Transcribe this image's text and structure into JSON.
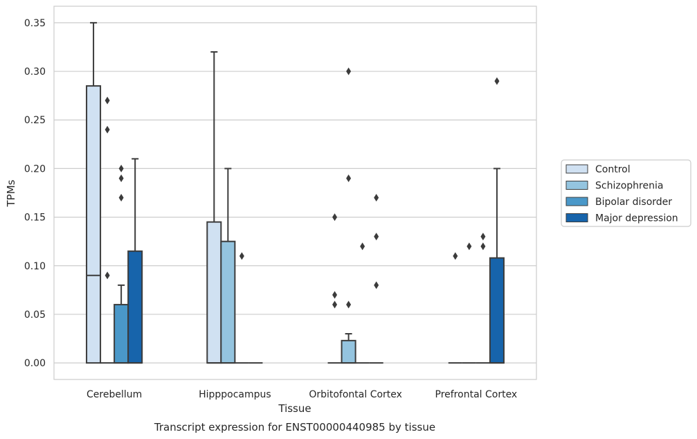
{
  "caption": "Transcript expression for ENST00000440985 by tissue",
  "chart_data": {
    "type": "box",
    "title": "",
    "xlabel": "Tissue",
    "ylabel": "TPMs",
    "ylim": [
      -0.017,
      0.367
    ],
    "yticks": [
      0.0,
      0.05,
      0.1,
      0.15,
      0.2,
      0.25,
      0.3,
      0.35
    ],
    "ytick_labels": [
      "0.00",
      "0.05",
      "0.10",
      "0.15",
      "0.20",
      "0.25",
      "0.30",
      "0.35"
    ],
    "grid": "horizontal",
    "legend_position": "outside-right",
    "categories": [
      "Cerebellum",
      "Hipppocampus",
      "Orbitofontal Cortex",
      "Prefrontal Cortex"
    ],
    "series": [
      {
        "name": "Control",
        "color": "#d0e1f2",
        "boxes": [
          {
            "q1": 0.0,
            "median": 0.09,
            "q3": 0.285,
            "whisker_low": 0.0,
            "whisker_high": 0.35,
            "outliers": []
          },
          {
            "q1": 0.0,
            "median": 0.0,
            "q3": 0.145,
            "whisker_low": 0.0,
            "whisker_high": 0.32,
            "outliers": []
          },
          {
            "q1": 0.0,
            "median": 0.0,
            "q3": 0.0,
            "whisker_low": 0.0,
            "whisker_high": 0.0,
            "outliers": [
              0.15,
              0.07,
              0.06
            ]
          },
          {
            "q1": 0.0,
            "median": 0.0,
            "q3": 0.0,
            "whisker_low": 0.0,
            "whisker_high": 0.0,
            "outliers": [
              0.11
            ]
          }
        ]
      },
      {
        "name": "Schizophrenia",
        "color": "#94c4df",
        "boxes": [
          {
            "q1": 0.0,
            "median": 0.0,
            "q3": 0.0,
            "whisker_low": 0.0,
            "whisker_high": 0.0,
            "outliers": [
              0.27,
              0.24,
              0.09
            ]
          },
          {
            "q1": 0.0,
            "median": 0.0,
            "q3": 0.125,
            "whisker_low": 0.0,
            "whisker_high": 0.2,
            "outliers": []
          },
          {
            "q1": 0.0,
            "median": 0.0,
            "q3": 0.023,
            "whisker_low": 0.0,
            "whisker_high": 0.03,
            "outliers": [
              0.3,
              0.19,
              0.06
            ]
          },
          {
            "q1": 0.0,
            "median": 0.0,
            "q3": 0.0,
            "whisker_low": 0.0,
            "whisker_high": 0.0,
            "outliers": [
              0.12
            ]
          }
        ]
      },
      {
        "name": "Bipolar disorder",
        "color": "#4a98c9",
        "boxes": [
          {
            "q1": 0.0,
            "median": 0.0,
            "q3": 0.06,
            "whisker_low": 0.0,
            "whisker_high": 0.08,
            "outliers": [
              0.2,
              0.19,
              0.17
            ]
          },
          {
            "q1": 0.0,
            "median": 0.0,
            "q3": 0.0,
            "whisker_low": 0.0,
            "whisker_high": 0.0,
            "outliers": [
              0.11
            ]
          },
          {
            "q1": 0.0,
            "median": 0.0,
            "q3": 0.0,
            "whisker_low": 0.0,
            "whisker_high": 0.0,
            "outliers": [
              0.12
            ]
          },
          {
            "q1": 0.0,
            "median": 0.0,
            "q3": 0.0,
            "whisker_low": 0.0,
            "whisker_high": 0.0,
            "outliers": [
              0.13,
              0.12
            ]
          }
        ]
      },
      {
        "name": "Major depression",
        "color": "#1764ab",
        "boxes": [
          {
            "q1": 0.0,
            "median": 0.0,
            "q3": 0.115,
            "whisker_low": 0.0,
            "whisker_high": 0.21,
            "outliers": []
          },
          {
            "q1": 0.0,
            "median": 0.0,
            "q3": 0.0,
            "whisker_low": 0.0,
            "whisker_high": 0.0,
            "outliers": []
          },
          {
            "q1": 0.0,
            "median": 0.0,
            "q3": 0.0,
            "whisker_low": 0.0,
            "whisker_high": 0.0,
            "outliers": [
              0.17,
              0.13,
              0.08
            ]
          },
          {
            "q1": 0.0,
            "median": 0.0,
            "q3": 0.108,
            "whisker_low": 0.0,
            "whisker_high": 0.2,
            "outliers": [
              0.29
            ]
          }
        ]
      }
    ]
  }
}
